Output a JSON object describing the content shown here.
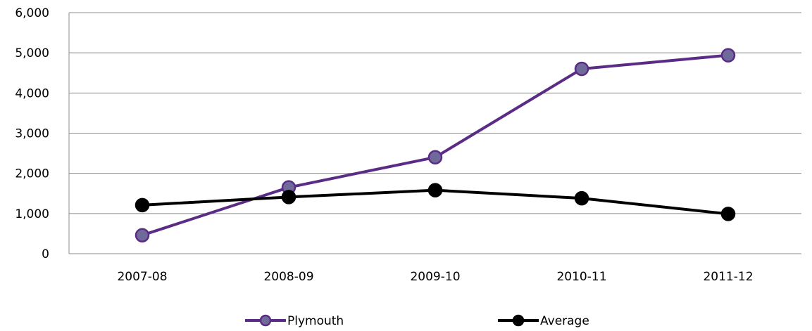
{
  "chart_data": {
    "type": "line",
    "title": "",
    "xlabel": "",
    "ylabel": "",
    "categories": [
      "2007-08",
      "2008-09",
      "2009-10",
      "2010-11",
      "2011-12"
    ],
    "ylim": [
      0,
      6000
    ],
    "yticks": [
      0,
      1000,
      2000,
      3000,
      4000,
      5000,
      6000
    ],
    "ytick_labels": [
      "0",
      "1,000",
      "2,000",
      "3,000",
      "4,000",
      "5,000",
      "6,000"
    ],
    "grid": "horizontal",
    "legend_position": "bottom",
    "series": [
      {
        "name": "Plymouth",
        "values": [
          460,
          1650,
          2400,
          4600,
          4940
        ],
        "line_color": "#5b2c86",
        "marker_fill": "#6f6a9a",
        "marker_stroke": "#5b2c86"
      },
      {
        "name": "Average",
        "values": [
          1210,
          1410,
          1580,
          1380,
          990
        ],
        "line_color": "#000000",
        "marker_fill": "#000000",
        "marker_stroke": "#000000"
      }
    ]
  }
}
